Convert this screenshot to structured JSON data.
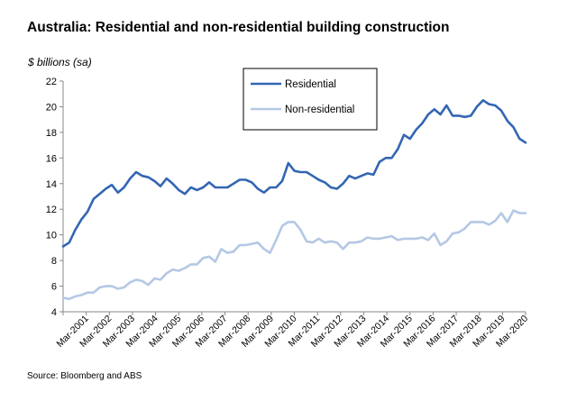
{
  "chart_data": {
    "type": "line",
    "title": "Australia: Residential and non-residential building construction",
    "ylabel": "$ billions (sa)",
    "xlabel": "",
    "source": "Source: Bloomberg and ABS",
    "ylim": [
      4,
      22
    ],
    "yticks": [
      4,
      6,
      8,
      10,
      12,
      14,
      16,
      18,
      20,
      22
    ],
    "grid": false,
    "legend_position": "top-center",
    "xtick_labels": [
      "Mar-2001",
      "Mar-2002",
      "Mar-2003",
      "Mar-2004",
      "Mar-2005",
      "Mar-2006",
      "Mar-2007",
      "Mar-2008",
      "Mar-2009",
      "Mar-2010",
      "Mar-2011",
      "Mar-2012",
      "Mar-2013",
      "Mar-2014",
      "Mar-2015",
      "Mar-2016",
      "Mar-2017",
      "Mar-2018",
      "Mar-2019",
      "Mar-2020"
    ],
    "series": [
      {
        "name": "Residential",
        "color": "#3366b3",
        "values": [
          9.1,
          9.4,
          10.4,
          11.2,
          11.8,
          12.8,
          13.2,
          13.6,
          13.9,
          13.3,
          13.7,
          14.4,
          14.9,
          14.6,
          14.5,
          14.2,
          13.8,
          14.4,
          14.0,
          13.5,
          13.2,
          13.7,
          13.5,
          13.7,
          14.1,
          13.7,
          13.7,
          13.7,
          14.0,
          14.3,
          14.3,
          14.1,
          13.6,
          13.3,
          13.7,
          13.7,
          14.2,
          15.6,
          15.0,
          14.9,
          14.9,
          14.6,
          14.3,
          14.1,
          13.7,
          13.6,
          14.0,
          14.6,
          14.4,
          14.6,
          14.8,
          14.7,
          15.7,
          16.0,
          16.0,
          16.7,
          17.8,
          17.5,
          18.2,
          18.7,
          19.4,
          19.8,
          19.4,
          20.1,
          19.3,
          19.3,
          19.2,
          19.3,
          20.0,
          20.5,
          20.2,
          20.1,
          19.7,
          18.9,
          18.4,
          17.5,
          17.2
        ]
      },
      {
        "name": "Non-residential",
        "color": "#b4c8e4",
        "values": [
          5.1,
          5.0,
          5.2,
          5.3,
          5.5,
          5.5,
          5.9,
          6.0,
          6.0,
          5.8,
          5.9,
          6.3,
          6.5,
          6.4,
          6.1,
          6.6,
          6.5,
          7.0,
          7.3,
          7.2,
          7.4,
          7.7,
          7.7,
          8.2,
          8.3,
          7.9,
          8.9,
          8.6,
          8.7,
          9.2,
          9.2,
          9.3,
          9.4,
          8.9,
          8.6,
          9.6,
          10.7,
          11.0,
          11.0,
          10.4,
          9.5,
          9.4,
          9.7,
          9.4,
          9.5,
          9.4,
          8.9,
          9.4,
          9.4,
          9.5,
          9.8,
          9.7,
          9.7,
          9.8,
          9.9,
          9.6,
          9.7,
          9.7,
          9.7,
          9.8,
          9.6,
          10.1,
          9.2,
          9.5,
          10.1,
          10.2,
          10.5,
          11.0,
          11.0,
          11.0,
          10.8,
          11.1,
          11.7,
          11.0,
          11.9,
          11.7,
          11.7
        ]
      }
    ]
  }
}
